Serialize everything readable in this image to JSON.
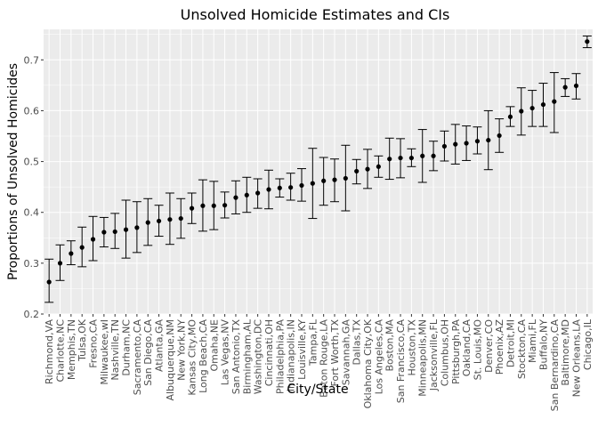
{
  "chart_data": {
    "type": "scatter",
    "title": "Unsolved Homicide Estimates and CIs",
    "xlabel": "City/State",
    "ylabel": "Proportions of Unsolved Homicides",
    "ylim": [
      0.2,
      0.76
    ],
    "yticks": [
      0.2,
      0.3,
      0.4,
      0.5,
      0.6,
      0.7
    ],
    "ytick_labels": [
      "0.2",
      "0.3",
      "0.4",
      "0.5",
      "0.6",
      "0.7"
    ],
    "grid": true,
    "background": "#ebebeb",
    "point_color": "#000000",
    "categories": [
      "Richmond,VA",
      "Charlotte,NC",
      "Memphis,TN",
      "Tulsa,OK",
      "Fresno,CA",
      "Milwaukee,wI",
      "Nashville,TN",
      "Durham,NC",
      "Sacramento,CA",
      "San Diego,CA",
      "Atlanta,GA",
      "Albuquerque,NM",
      "New York,NY",
      "Kansas City,MO",
      "Long Beach,CA",
      "Omaha,NE",
      "Las Vegas,NV",
      "San Antonio,TX",
      "Birmingham,AL",
      "Washington,DC",
      "Cincinnati,OH",
      "Philadelphia,PA",
      "Indianapolis,IN",
      "Louisville,KY",
      "Tampa,FL",
      "Baton Rouge,LA",
      "Fort Worth,TX",
      "Savannah,GA",
      "Dallas,TX",
      "Oklahoma City,OK",
      "Los Angeles,CA",
      "Boston,MA",
      "San Francisco,CA",
      "Houston,TX",
      "Minneapolis,MN",
      "Jacksonville,FL",
      "Columbus,OH",
      "Pittsburgh,PA",
      "Oakland,CA",
      "St. Louis,MO",
      "Denver,CO",
      "Phoenix,AZ",
      "Detroit,MI",
      "Stockton,CA",
      "Miami,FL",
      "Buffalo,NY",
      "San Bernardino,CA",
      "Baltimore,MD",
      "New Orleans,LA",
      "Chicago,IL"
    ],
    "series": [
      {
        "estimate": [
          0.263,
          0.3,
          0.319,
          0.331,
          0.347,
          0.361,
          0.362,
          0.366,
          0.37,
          0.38,
          0.383,
          0.386,
          0.388,
          0.408,
          0.413,
          0.413,
          0.414,
          0.429,
          0.434,
          0.438,
          0.445,
          0.448,
          0.449,
          0.453,
          0.457,
          0.462,
          0.464,
          0.467,
          0.481,
          0.485,
          0.49,
          0.505,
          0.507,
          0.507,
          0.511,
          0.511,
          0.53,
          0.534,
          0.536,
          0.54,
          0.542,
          0.551,
          0.588,
          0.599,
          0.605,
          0.612,
          0.618,
          0.646,
          0.649,
          0.736
        ],
        "ci_low": [
          0.223,
          0.266,
          0.297,
          0.293,
          0.305,
          0.332,
          0.329,
          0.31,
          0.321,
          0.335,
          0.353,
          0.337,
          0.349,
          0.378,
          0.363,
          0.366,
          0.389,
          0.397,
          0.4,
          0.408,
          0.407,
          0.43,
          0.424,
          0.422,
          0.388,
          0.414,
          0.421,
          0.403,
          0.456,
          0.447,
          0.469,
          0.465,
          0.468,
          0.49,
          0.459,
          0.482,
          0.501,
          0.495,
          0.502,
          0.515,
          0.484,
          0.518,
          0.569,
          0.552,
          0.569,
          0.569,
          0.557,
          0.628,
          0.623,
          0.724
        ],
        "ci_high": [
          0.308,
          0.336,
          0.344,
          0.371,
          0.392,
          0.39,
          0.398,
          0.424,
          0.421,
          0.427,
          0.414,
          0.438,
          0.427,
          0.438,
          0.464,
          0.461,
          0.44,
          0.462,
          0.469,
          0.466,
          0.483,
          0.466,
          0.477,
          0.486,
          0.526,
          0.508,
          0.505,
          0.532,
          0.504,
          0.524,
          0.511,
          0.546,
          0.545,
          0.525,
          0.563,
          0.54,
          0.56,
          0.573,
          0.57,
          0.568,
          0.6,
          0.584,
          0.608,
          0.645,
          0.64,
          0.654,
          0.675,
          0.663,
          0.673,
          0.747
        ]
      }
    ]
  }
}
